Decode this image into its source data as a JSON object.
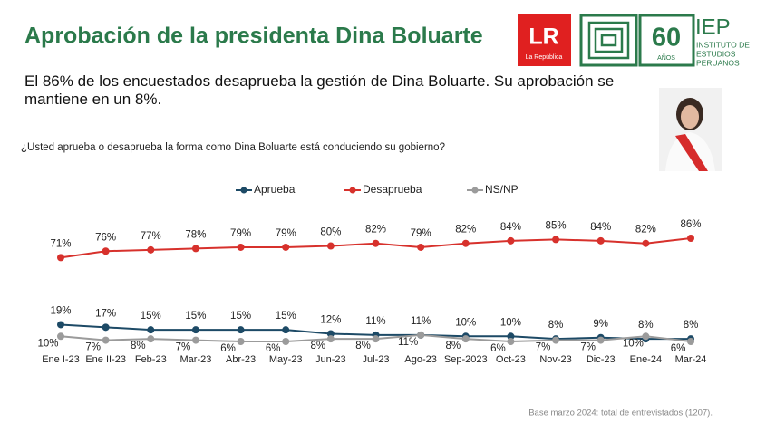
{
  "chart_data": {
    "type": "line",
    "title": "Aprobación de la presidenta Dina Boluarte",
    "subtitle": "El 86% de los encuestados desaprueba la gestión de Dina Boluarte. Su aprobación se mantiene en un 8%.",
    "question": "¿Usted aprueba o desaprueba la forma como Dina Boluarte está conduciendo su gobierno?",
    "footnote": "Base marzo 2024: total de entrevistados (1207).",
    "categories": [
      "Ene I-23",
      "Ene II-23",
      "Feb-23",
      "Mar-23",
      "Abr-23",
      "May-23",
      "Jun-23",
      "Jul-23",
      "Ago-23",
      "Sep-2023",
      "Oct-23",
      "Nov-23",
      "Dic-23",
      "Ene-24",
      "Mar-24"
    ],
    "series": [
      {
        "name": "Aprueba",
        "color": "#1d4a66",
        "values": [
          19,
          17,
          15,
          15,
          15,
          15,
          12,
          11,
          11,
          10,
          10,
          8,
          9,
          8,
          8
        ],
        "value_labels": [
          "19%",
          "17%",
          "15%",
          "15%",
          "15%",
          "15%",
          "12%",
          "11%",
          "11%",
          "10%",
          "10%",
          "8%",
          "9%",
          "8%",
          "8%"
        ]
      },
      {
        "name": "Desaprueba",
        "color": "#d7312c",
        "values": [
          71,
          76,
          77,
          78,
          79,
          79,
          80,
          82,
          79,
          82,
          84,
          85,
          84,
          82,
          86
        ],
        "value_labels": [
          "71%",
          "76%",
          "77%",
          "78%",
          "79%",
          "79%",
          "80%",
          "82%",
          "79%",
          "82%",
          "84%",
          "85%",
          "84%",
          "82%",
          "86%"
        ]
      },
      {
        "name": "NS/NP",
        "color": "#9b9b9b",
        "values": [
          10,
          7,
          8,
          7,
          6,
          6,
          8,
          8,
          11,
          8,
          6,
          7,
          7,
          10,
          6
        ],
        "value_labels": [
          "10%",
          "7%",
          "8%",
          "7%",
          "6%",
          "6%",
          "8%",
          "8%",
          "11%",
          "8%",
          "6%",
          "7%",
          "7%",
          "10%",
          "6%"
        ]
      }
    ],
    "legend": "top",
    "grid": false
  },
  "logos": {
    "lr": "LR",
    "lr_name": "La República",
    "anniversary": "60",
    "anniversary_unit": "AÑOS",
    "iep": "IEP",
    "iep_name": [
      "INSTITUTO DE",
      "ESTUDIOS",
      "PERUANOS"
    ]
  }
}
